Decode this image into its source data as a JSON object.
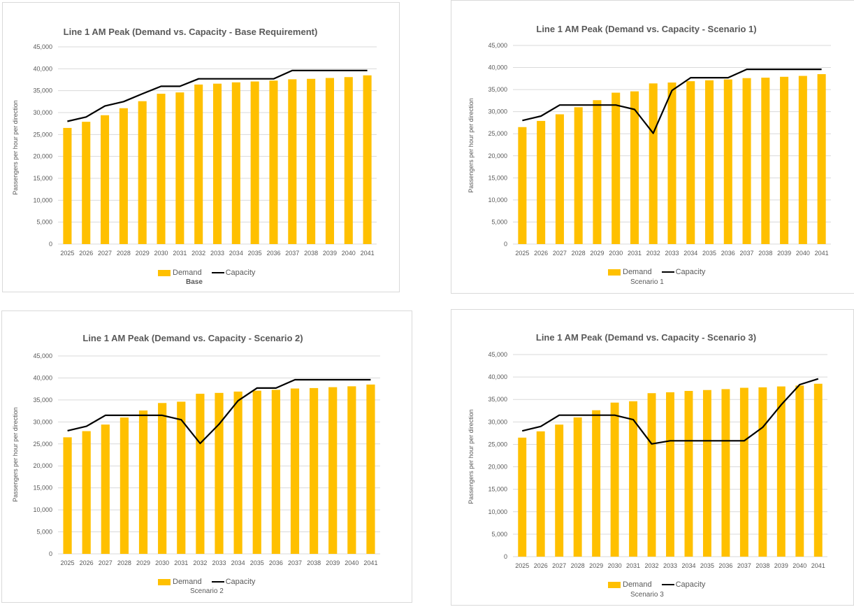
{
  "colors": {
    "demand": "#FFC000",
    "capacity": "#000000",
    "grid": "#d9d9d9",
    "text": "#595959"
  },
  "chart_data": [
    {
      "type": "bar",
      "title": "Line 1 AM Peak (Demand vs. Capacity - Base Requirement)",
      "ylabel": "Passengers per hour per direction",
      "xlabel": "",
      "sublabel": "Base",
      "ylim": [
        0,
        45000
      ],
      "yticks": [
        0,
        5000,
        10000,
        15000,
        20000,
        25000,
        30000,
        35000,
        40000,
        45000
      ],
      "ytick_labels": [
        "0",
        "5,000",
        "10,000",
        "15,000",
        "20,000",
        "25,000",
        "30,000",
        "35,000",
        "40,000",
        "45,000"
      ],
      "grid": true,
      "legend": [
        "Demand",
        "Capacity"
      ],
      "legend_position": "bottom",
      "categories": [
        "2025",
        "2026",
        "2027",
        "2028",
        "2029",
        "2030",
        "2031",
        "2032",
        "2033",
        "2034",
        "2035",
        "2036",
        "2037",
        "2038",
        "2039",
        "2040",
        "2041"
      ],
      "series": [
        {
          "name": "Demand",
          "kind": "bar",
          "values": [
            26500,
            27900,
            29400,
            31000,
            32600,
            34300,
            34600,
            36400,
            36600,
            36900,
            37100,
            37300,
            37600,
            37700,
            37900,
            38100,
            38500
          ]
        },
        {
          "name": "Capacity",
          "kind": "line",
          "values": [
            28000,
            29000,
            31500,
            32500,
            34300,
            36000,
            36000,
            37700,
            37700,
            37700,
            37700,
            37700,
            39600,
            39600,
            39600,
            39600,
            39600
          ]
        }
      ]
    },
    {
      "type": "bar",
      "title": "Line 1 AM Peak (Demand vs. Capacity - Scenario 1)",
      "ylabel": "Passengers per hour per direction",
      "xlabel": "",
      "sublabel": "Scenario 1",
      "ylim": [
        0,
        45000
      ],
      "yticks": [
        0,
        5000,
        10000,
        15000,
        20000,
        25000,
        30000,
        35000,
        40000,
        45000
      ],
      "ytick_labels": [
        "0",
        "5,000",
        "10,000",
        "15,000",
        "20,000",
        "25,000",
        "30,000",
        "35,000",
        "40,000",
        "45,000"
      ],
      "grid": true,
      "legend": [
        "Demand",
        "Capacity"
      ],
      "legend_position": "bottom",
      "categories": [
        "2025",
        "2026",
        "2027",
        "2028",
        "2029",
        "2030",
        "2031",
        "2032",
        "2033",
        "2034",
        "2035",
        "2036",
        "2037",
        "2038",
        "2039",
        "2040",
        "2041"
      ],
      "series": [
        {
          "name": "Demand",
          "kind": "bar",
          "values": [
            26500,
            27900,
            29400,
            31000,
            32600,
            34300,
            34600,
            36400,
            36600,
            36900,
            37100,
            37300,
            37600,
            37700,
            37900,
            38100,
            38500
          ]
        },
        {
          "name": "Capacity",
          "kind": "line",
          "values": [
            28000,
            29000,
            31500,
            31500,
            31500,
            31500,
            30500,
            25100,
            34800,
            37700,
            37700,
            37700,
            39600,
            39600,
            39600,
            39600,
            39600
          ]
        }
      ]
    },
    {
      "type": "bar",
      "title": "Line 1 AM Peak (Demand vs. Capacity - Scenario 2)",
      "ylabel": "Passengers per hour per direction",
      "xlabel": "",
      "sublabel": "Scenario 2",
      "ylim": [
        0,
        45000
      ],
      "yticks": [
        0,
        5000,
        10000,
        15000,
        20000,
        25000,
        30000,
        35000,
        40000,
        45000
      ],
      "ytick_labels": [
        "0",
        "5,000",
        "10,000",
        "15,000",
        "20,000",
        "25,000",
        "30,000",
        "35,000",
        "40,000",
        "45,000"
      ],
      "grid": true,
      "legend": [
        "Demand",
        "Capacity"
      ],
      "legend_position": "bottom",
      "categories": [
        "2025",
        "2026",
        "2027",
        "2028",
        "2029",
        "2030",
        "2031",
        "2032",
        "2033",
        "2034",
        "2035",
        "2036",
        "2037",
        "2038",
        "2039",
        "2040",
        "2041"
      ],
      "series": [
        {
          "name": "Demand",
          "kind": "bar",
          "values": [
            26500,
            27900,
            29400,
            31000,
            32600,
            34300,
            34600,
            36400,
            36600,
            36900,
            37100,
            37300,
            37600,
            37700,
            37900,
            38100,
            38500
          ]
        },
        {
          "name": "Capacity",
          "kind": "line",
          "values": [
            28000,
            29000,
            31500,
            31500,
            31500,
            31500,
            30500,
            25100,
            29500,
            34800,
            37700,
            37700,
            39600,
            39600,
            39600,
            39600,
            39600
          ]
        }
      ]
    },
    {
      "type": "bar",
      "title": "Line 1 AM Peak (Demand vs. Capacity - Scenario 3)",
      "ylabel": "Passengers per hour per direction",
      "xlabel": "",
      "sublabel": "Scenario 3",
      "ylim": [
        0,
        45000
      ],
      "yticks": [
        0,
        5000,
        10000,
        15000,
        20000,
        25000,
        30000,
        35000,
        40000,
        45000
      ],
      "ytick_labels": [
        "0",
        "5,000",
        "10,000",
        "15,000",
        "20,000",
        "25,000",
        "30,000",
        "35,000",
        "40,000",
        "45,000"
      ],
      "grid": true,
      "legend": [
        "Demand",
        "Capacity"
      ],
      "legend_position": "bottom",
      "categories": [
        "2025",
        "2026",
        "2027",
        "2028",
        "2029",
        "2030",
        "2031",
        "2032",
        "2033",
        "2034",
        "2035",
        "2036",
        "2037",
        "2038",
        "2039",
        "2040",
        "2041"
      ],
      "series": [
        {
          "name": "Demand",
          "kind": "bar",
          "values": [
            26500,
            27900,
            29400,
            31000,
            32600,
            34300,
            34600,
            36400,
            36600,
            36900,
            37100,
            37300,
            37600,
            37700,
            37900,
            38100,
            38500
          ]
        },
        {
          "name": "Capacity",
          "kind": "line",
          "values": [
            28000,
            29000,
            31500,
            31500,
            31500,
            31500,
            30500,
            25100,
            25800,
            25800,
            25800,
            25800,
            25800,
            28800,
            33800,
            38300,
            39600
          ]
        }
      ]
    }
  ]
}
